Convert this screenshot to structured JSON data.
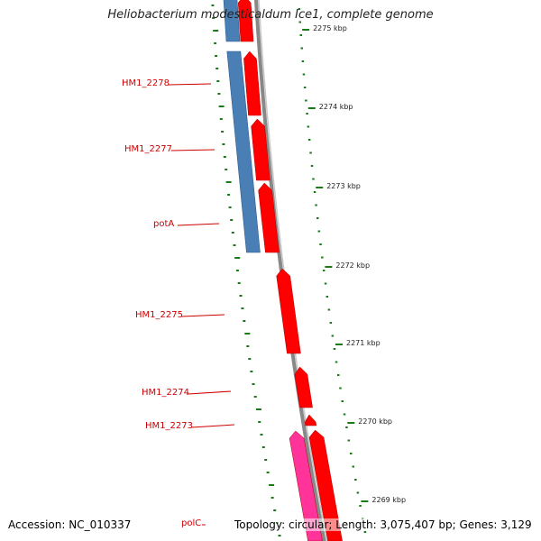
{
  "title": "Heliobacterium modesticaldum Ice1, complete genome",
  "footer": {
    "accession": "Accession: NC_010337",
    "topology": "Topology: circular; Length: 3,075,407 bp; Genes: 3,129"
  },
  "genes": [
    {
      "label": "HM1_2278"
    },
    {
      "label": "HM1_2277"
    },
    {
      "label": "potA"
    },
    {
      "label": "HM1_2275"
    },
    {
      "label": "HM1_2274"
    },
    {
      "label": "HM1_2273"
    },
    {
      "label": "polC"
    }
  ],
  "scale_ticks": [
    {
      "label": "2275 kbp"
    },
    {
      "label": "2274 kbp"
    },
    {
      "label": "2273 kbp"
    },
    {
      "label": "2272 kbp"
    },
    {
      "label": "2271 kbp"
    },
    {
      "label": "2270 kbp"
    },
    {
      "label": "2269 kbp"
    }
  ],
  "colors": {
    "forward_gene": "#ff0000",
    "reverse_track": "#4a7fb5",
    "pink_gene": "#ff3399",
    "backbone": "#888888",
    "tick": "#1a7a1a",
    "label": "#cc0000"
  }
}
